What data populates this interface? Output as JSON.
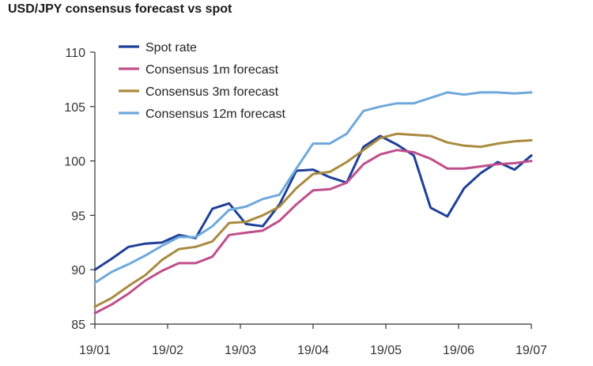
{
  "chart_data": {
    "type": "line",
    "title": "USD/JPY consensus forecast vs spot",
    "xlabel": "",
    "ylabel": "",
    "ylim": [
      85,
      110
    ],
    "yticks": [
      85,
      90,
      95,
      100,
      105,
      110
    ],
    "xtick_labels": [
      "19/01",
      "19/02",
      "19/03",
      "19/04",
      "19/05",
      "19/06",
      "19/07"
    ],
    "grid": false,
    "legend_position": "top-left",
    "series": [
      {
        "name": "Spot rate",
        "color": "#1f3f99",
        "values": [
          90.0,
          91.0,
          92.1,
          92.4,
          92.5,
          93.2,
          92.9,
          95.6,
          96.1,
          94.2,
          94.0,
          96.0,
          99.1,
          99.2,
          98.5,
          98.0,
          101.3,
          102.3,
          101.5,
          100.5,
          95.7,
          94.9,
          97.5,
          98.9,
          99.9,
          99.2,
          100.5
        ]
      },
      {
        "name": "Consensus 1m forecast",
        "color": "#bf4f8c",
        "values": [
          86.0,
          86.8,
          87.8,
          89.0,
          89.9,
          90.6,
          90.6,
          91.2,
          93.2,
          93.4,
          93.6,
          94.5,
          96.0,
          97.3,
          97.4,
          98.0,
          99.7,
          100.6,
          101.0,
          100.8,
          100.2,
          99.3,
          99.3,
          99.5,
          99.7,
          99.8,
          100.0
        ]
      },
      {
        "name": "Consensus 3m forecast",
        "color": "#a98b3f",
        "values": [
          86.6,
          87.4,
          88.5,
          89.5,
          90.9,
          91.9,
          92.1,
          92.6,
          94.3,
          94.4,
          95.0,
          95.8,
          97.5,
          98.8,
          99.0,
          99.9,
          101.0,
          102.1,
          102.5,
          102.4,
          102.3,
          101.7,
          101.4,
          101.3,
          101.6,
          101.8,
          101.9
        ]
      },
      {
        "name": "Consensus 12m forecast",
        "color": "#6ea9dc",
        "values": [
          88.8,
          89.8,
          90.5,
          91.3,
          92.2,
          93.0,
          93.0,
          94.0,
          95.5,
          95.8,
          96.5,
          96.9,
          99.3,
          101.6,
          101.6,
          102.5,
          104.6,
          105.0,
          105.3,
          105.3,
          105.8,
          106.3,
          106.1,
          106.3,
          106.3,
          106.2,
          106.3
        ]
      }
    ]
  }
}
